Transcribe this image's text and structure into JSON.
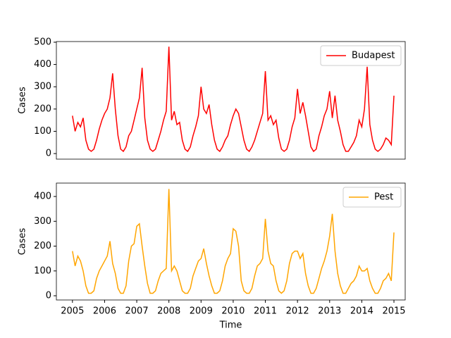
{
  "chart_data": [
    {
      "type": "line",
      "ylabel": "Cases",
      "xlim": [
        2004.5,
        2015.35
      ],
      "ylim": [
        -25,
        503
      ],
      "yticks": [
        0,
        100,
        200,
        300,
        400,
        500
      ],
      "legend": "upper right",
      "x": [
        2005,
        2005.083,
        2005.167,
        2005.25,
        2005.333,
        2005.417,
        2005.5,
        2005.583,
        2005.667,
        2005.75,
        2005.833,
        2005.917,
        2006,
        2006.083,
        2006.167,
        2006.25,
        2006.333,
        2006.417,
        2006.5,
        2006.583,
        2006.667,
        2006.75,
        2006.833,
        2006.917,
        2007,
        2007.083,
        2007.167,
        2007.25,
        2007.333,
        2007.417,
        2007.5,
        2007.583,
        2007.667,
        2007.75,
        2007.833,
        2007.917,
        2008,
        2008.083,
        2008.167,
        2008.25,
        2008.333,
        2008.417,
        2008.5,
        2008.583,
        2008.667,
        2008.75,
        2008.833,
        2008.917,
        2009,
        2009.083,
        2009.167,
        2009.25,
        2009.333,
        2009.417,
        2009.5,
        2009.583,
        2009.667,
        2009.75,
        2009.833,
        2009.917,
        2010,
        2010.083,
        2010.167,
        2010.25,
        2010.333,
        2010.417,
        2010.5,
        2010.583,
        2010.667,
        2010.75,
        2010.833,
        2010.917,
        2011,
        2011.083,
        2011.167,
        2011.25,
        2011.333,
        2011.417,
        2011.5,
        2011.583,
        2011.667,
        2011.75,
        2011.833,
        2011.917,
        2012,
        2012.083,
        2012.167,
        2012.25,
        2012.333,
        2012.417,
        2012.5,
        2012.583,
        2012.667,
        2012.75,
        2012.833,
        2012.917,
        2013,
        2013.083,
        2013.167,
        2013.25,
        2013.333,
        2013.417,
        2013.5,
        2013.583,
        2013.667,
        2013.75,
        2013.833,
        2013.917,
        2014,
        2014.083,
        2014.167,
        2014.25,
        2014.333,
        2014.417,
        2014.5,
        2014.583,
        2014.667,
        2014.75,
        2014.833,
        2014.917,
        2015
      ],
      "series": [
        {
          "name": "Budapest",
          "color": "#ff0000",
          "values": [
            170,
            100,
            140,
            120,
            160,
            60,
            20,
            10,
            20,
            60,
            110,
            150,
            180,
            200,
            250,
            360,
            200,
            80,
            20,
            10,
            30,
            80,
            100,
            150,
            200,
            250,
            385,
            160,
            60,
            20,
            10,
            20,
            60,
            100,
            150,
            190,
            480,
            150,
            190,
            130,
            140,
            60,
            20,
            10,
            30,
            80,
            120,
            170,
            300,
            200,
            180,
            220,
            130,
            60,
            20,
            10,
            30,
            60,
            80,
            130,
            170,
            200,
            180,
            120,
            60,
            20,
            10,
            30,
            60,
            100,
            140,
            180,
            370,
            150,
            170,
            130,
            150,
            70,
            20,
            10,
            20,
            60,
            120,
            160,
            290,
            180,
            230,
            170,
            100,
            30,
            10,
            20,
            80,
            120,
            170,
            200,
            280,
            160,
            260,
            150,
            100,
            40,
            10,
            10,
            30,
            50,
            80,
            150,
            120,
            200,
            390,
            130,
            60,
            20,
            10,
            20,
            40,
            70,
            60,
            40,
            260
          ]
        }
      ]
    },
    {
      "type": "line",
      "ylabel": "Cases",
      "xlabel": "Time",
      "xlim": [
        2004.5,
        2015.35
      ],
      "xticks": [
        2005,
        2006,
        2007,
        2008,
        2009,
        2010,
        2011,
        2012,
        2013,
        2014,
        2015
      ],
      "ylim": [
        -17,
        454
      ],
      "yticks": [
        0,
        100,
        200,
        300,
        400
      ],
      "legend": "upper right",
      "x": [
        2005,
        2005.083,
        2005.167,
        2005.25,
        2005.333,
        2005.417,
        2005.5,
        2005.583,
        2005.667,
        2005.75,
        2005.833,
        2005.917,
        2006,
        2006.083,
        2006.167,
        2006.25,
        2006.333,
        2006.417,
        2006.5,
        2006.583,
        2006.667,
        2006.75,
        2006.833,
        2006.917,
        2007,
        2007.083,
        2007.167,
        2007.25,
        2007.333,
        2007.417,
        2007.5,
        2007.583,
        2007.667,
        2007.75,
        2007.833,
        2007.917,
        2008,
        2008.083,
        2008.167,
        2008.25,
        2008.333,
        2008.417,
        2008.5,
        2008.583,
        2008.667,
        2008.75,
        2008.833,
        2008.917,
        2009,
        2009.083,
        2009.167,
        2009.25,
        2009.333,
        2009.417,
        2009.5,
        2009.583,
        2009.667,
        2009.75,
        2009.833,
        2009.917,
        2010,
        2010.083,
        2010.167,
        2010.25,
        2010.333,
        2010.417,
        2010.5,
        2010.583,
        2010.667,
        2010.75,
        2010.833,
        2010.917,
        2011,
        2011.083,
        2011.167,
        2011.25,
        2011.333,
        2011.417,
        2011.5,
        2011.583,
        2011.667,
        2011.75,
        2011.833,
        2011.917,
        2012,
        2012.083,
        2012.167,
        2012.25,
        2012.333,
        2012.417,
        2012.5,
        2012.583,
        2012.667,
        2012.75,
        2012.833,
        2012.917,
        2013,
        2013.083,
        2013.167,
        2013.25,
        2013.333,
        2013.417,
        2013.5,
        2013.583,
        2013.667,
        2013.75,
        2013.833,
        2013.917,
        2014,
        2014.083,
        2014.167,
        2014.25,
        2014.333,
        2014.417,
        2014.5,
        2014.583,
        2014.667,
        2014.75,
        2014.833,
        2014.917,
        2015
      ],
      "series": [
        {
          "name": "Pest",
          "color": "#ffa500",
          "values": [
            180,
            120,
            160,
            140,
            100,
            40,
            10,
            10,
            20,
            70,
            100,
            120,
            140,
            160,
            220,
            130,
            90,
            30,
            10,
            10,
            40,
            140,
            200,
            210,
            280,
            290,
            200,
            120,
            50,
            10,
            10,
            20,
            60,
            90,
            100,
            110,
            430,
            100,
            120,
            100,
            60,
            20,
            10,
            10,
            30,
            80,
            110,
            140,
            150,
            190,
            130,
            80,
            40,
            10,
            10,
            20,
            60,
            120,
            150,
            170,
            270,
            260,
            200,
            60,
            20,
            10,
            10,
            30,
            80,
            120,
            130,
            150,
            310,
            180,
            130,
            120,
            60,
            20,
            10,
            20,
            60,
            130,
            170,
            180,
            180,
            150,
            170,
            90,
            40,
            10,
            10,
            30,
            70,
            110,
            140,
            180,
            240,
            330,
            180,
            90,
            40,
            10,
            10,
            30,
            50,
            60,
            80,
            120,
            100,
            100,
            110,
            60,
            30,
            10,
            10,
            30,
            60,
            70,
            90,
            60,
            255
          ]
        }
      ]
    }
  ]
}
